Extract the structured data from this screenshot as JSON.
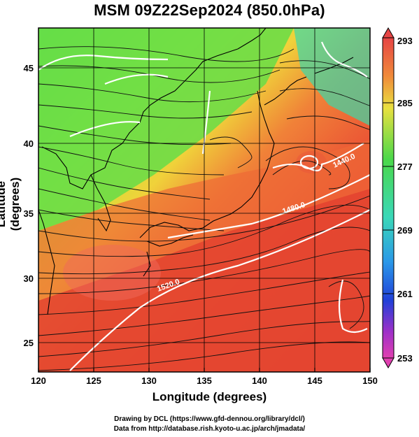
{
  "title": "MSM 09Z22Sep2024 (850.0hPa)",
  "xlabel": "Longitude (degrees)",
  "ylabel": "Latitude  (degrees)",
  "x_ticks": [
    "120",
    "125",
    "130",
    "135",
    "140",
    "145",
    "150"
  ],
  "y_ticks": [
    "25",
    "30",
    "35",
    "40",
    "45"
  ],
  "colorbar": {
    "ticks": [
      "293",
      "285",
      "277",
      "269",
      "261",
      "253"
    ]
  },
  "contour_labels": [
    "1520.0",
    "1480.0",
    "1440.0"
  ],
  "credits": {
    "line1": "Drawing by DCL (https://www.gfd-dennou.org/library/dcl/)",
    "line2": "Data from http://database.rish.kyoto-u.ac.jp/arch/jmadata/"
  }
}
